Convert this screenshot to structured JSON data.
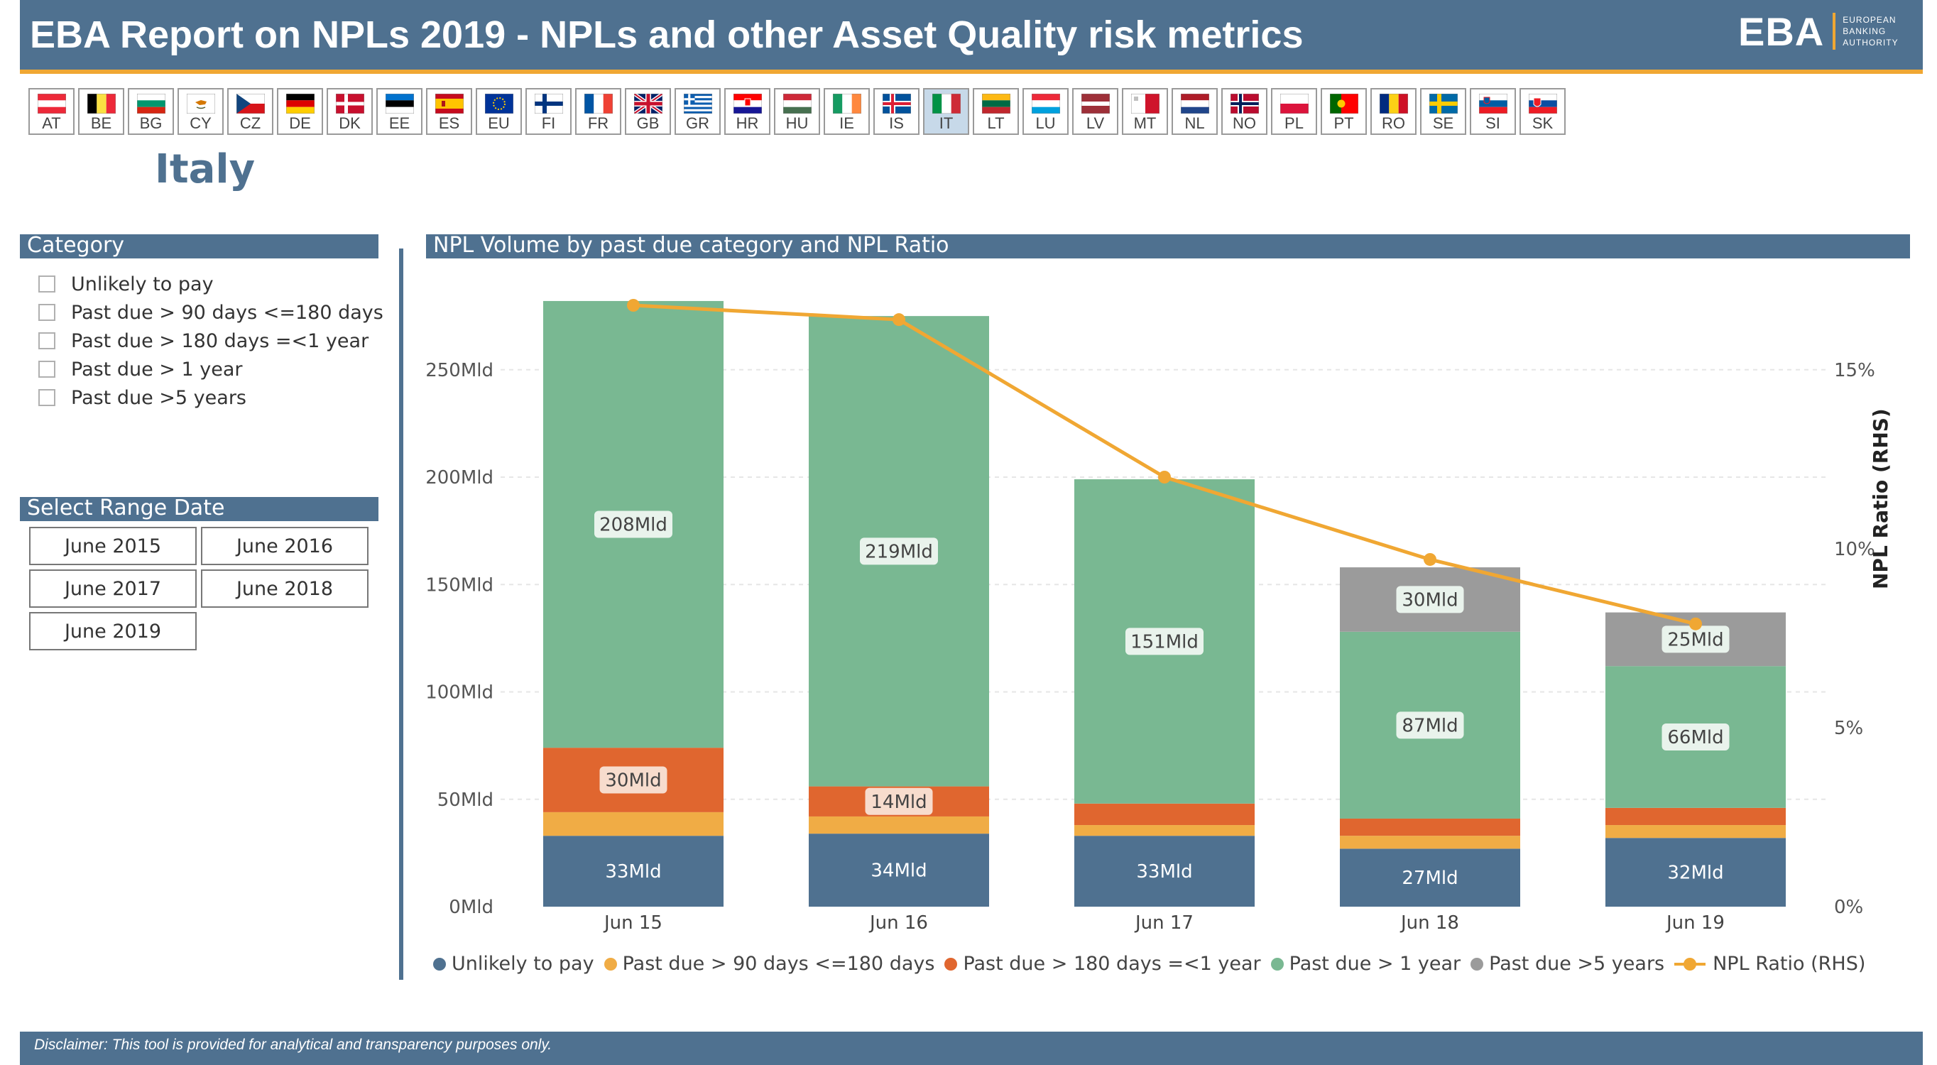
{
  "header": {
    "title": "EBA Report on NPLs 2019 - NPLs and other Asset Quality risk metrics",
    "logo_main": "EBA",
    "logo_sub": [
      "EUROPEAN",
      "BANKING",
      "AUTHORITY"
    ]
  },
  "countries": [
    "AT",
    "BE",
    "BG",
    "CY",
    "CZ",
    "DE",
    "DK",
    "EE",
    "ES",
    "EU",
    "FI",
    "FR",
    "GB",
    "GR",
    "HR",
    "HU",
    "IE",
    "IS",
    "IT",
    "LT",
    "LU",
    "LV",
    "MT",
    "NL",
    "NO",
    "PL",
    "PT",
    "RO",
    "SE",
    "SI",
    "SK"
  ],
  "selected_country_code": "IT",
  "selected_country_name": "Italy",
  "category_panel": {
    "title": "Category",
    "items": [
      "Unlikely to pay",
      "Past due > 90 days <=180 days",
      "Past due > 180 days =<1 year",
      "Past due > 1 year",
      "Past due >5 years"
    ]
  },
  "date_panel": {
    "title": "Select Range Date",
    "options": [
      "June 2015",
      "June 2016",
      "June 2017",
      "June 2018",
      "June 2019"
    ]
  },
  "chart_panel": {
    "title": "NPL Volume by past due category and NPL Ratio"
  },
  "footer": {
    "disclaimer": "Disclaimer: This tool is provided for analytical and transparency purposes only."
  },
  "colors": {
    "header": "#4f7190",
    "accent": "#f0a733",
    "unlikely": "#4f7190",
    "pd90": "#f0ac45",
    "pd180": "#e0662f",
    "pd1y": "#79b892",
    "pd5y": "#9b9b9b",
    "ratio": "#f0a733"
  },
  "chart_data": {
    "type": "bar",
    "stacked": true,
    "categories": [
      "Jun 15",
      "Jun 16",
      "Jun 17",
      "Jun 18",
      "Jun 19"
    ],
    "series": [
      {
        "name": "Unlikely to pay",
        "color_key": "unlikely",
        "values": [
          33,
          34,
          33,
          27,
          32
        ],
        "labels": [
          "33Mld",
          "34Mld",
          "33Mld",
          "27Mld",
          "32Mld"
        ]
      },
      {
        "name": "Past due > 90 days <=180 days",
        "color_key": "pd90",
        "values": [
          11,
          8,
          5,
          6,
          6
        ],
        "labels": [
          "",
          "",
          "",
          "",
          ""
        ]
      },
      {
        "name": "Past due > 180 days =<1 year",
        "color_key": "pd180",
        "values": [
          30,
          14,
          10,
          8,
          8
        ],
        "labels": [
          "30Mld",
          "14Mld",
          "",
          "",
          ""
        ]
      },
      {
        "name": "Past due > 1 year",
        "color_key": "pd1y",
        "values": [
          208,
          219,
          151,
          87,
          66
        ],
        "labels": [
          "208Mld",
          "219Mld",
          "151Mld",
          "87Mld",
          "66Mld"
        ]
      },
      {
        "name": "Past due >5 years",
        "color_key": "pd5y",
        "values": [
          0,
          0,
          0,
          30,
          25
        ],
        "labels": [
          "",
          "",
          "",
          "30Mld",
          "25Mld"
        ]
      }
    ],
    "line": {
      "name": "NPL Ratio (RHS)",
      "values": [
        16.8,
        16.4,
        12.0,
        9.7,
        7.9
      ]
    },
    "y_left": {
      "range": [
        0,
        280
      ],
      "ticks": [
        0,
        50,
        100,
        150,
        200,
        250
      ],
      "tick_labels": [
        "0Mld",
        "50Mld",
        "100Mld",
        "150Mld",
        "200Mld",
        "250Mld"
      ]
    },
    "y_right": {
      "label": "NPL Ratio (RHS)",
      "range": [
        0,
        16.8
      ],
      "ticks": [
        0,
        5,
        10,
        15
      ],
      "tick_labels": [
        "0%",
        "5%",
        "10%",
        "15%"
      ]
    },
    "grid": true,
    "legend": "bottom"
  }
}
